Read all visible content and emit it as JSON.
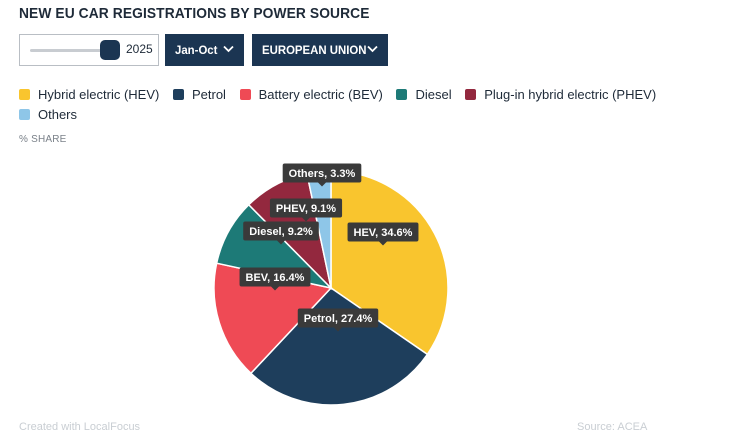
{
  "title": "NEW EU CAR REGISTRATIONS BY POWER SOURCE",
  "controls": {
    "year": "2025",
    "year_slider_value": 1.0,
    "period": "Jan-Oct",
    "region": "EUROPEAN UNION"
  },
  "legend": [
    {
      "label": "Hybrid electric (HEV)",
      "color": "#f9c52e"
    },
    {
      "label": "Petrol",
      "color": "#1e3e5c"
    },
    {
      "label": "Battery electric (BEV)",
      "color": "#ef4a55"
    },
    {
      "label": "Diesel",
      "color": "#1d7a77"
    },
    {
      "label": "Plug-in hybrid electric (PHEV)",
      "color": "#93283e"
    },
    {
      "label": "Others",
      "color": "#8ec6e8"
    }
  ],
  "unit_label": "% SHARE",
  "chart_data": {
    "type": "pie",
    "slices": [
      {
        "name": "HEV",
        "value": 34.6,
        "label": "HEV, 34.6%",
        "color": "#f9c52e"
      },
      {
        "name": "Petrol",
        "value": 27.4,
        "label": "Petrol, 27.4%",
        "color": "#1e3e5c"
      },
      {
        "name": "BEV",
        "value": 16.4,
        "label": "BEV, 16.4%",
        "color": "#ef4a55"
      },
      {
        "name": "Diesel",
        "value": 9.2,
        "label": "Diesel, 9.2%",
        "color": "#1d7a77"
      },
      {
        "name": "PHEV",
        "value": 9.1,
        "label": "PHEV, 9.1%",
        "color": "#93283e"
      },
      {
        "name": "Others",
        "value": 3.3,
        "label": "Others, 3.3%",
        "color": "#8ec6e8"
      }
    ],
    "start": "12 o'clock",
    "direction": "clockwise"
  },
  "footer": {
    "credit": "Created with LocalFocus",
    "source": "Source: ACEA"
  }
}
